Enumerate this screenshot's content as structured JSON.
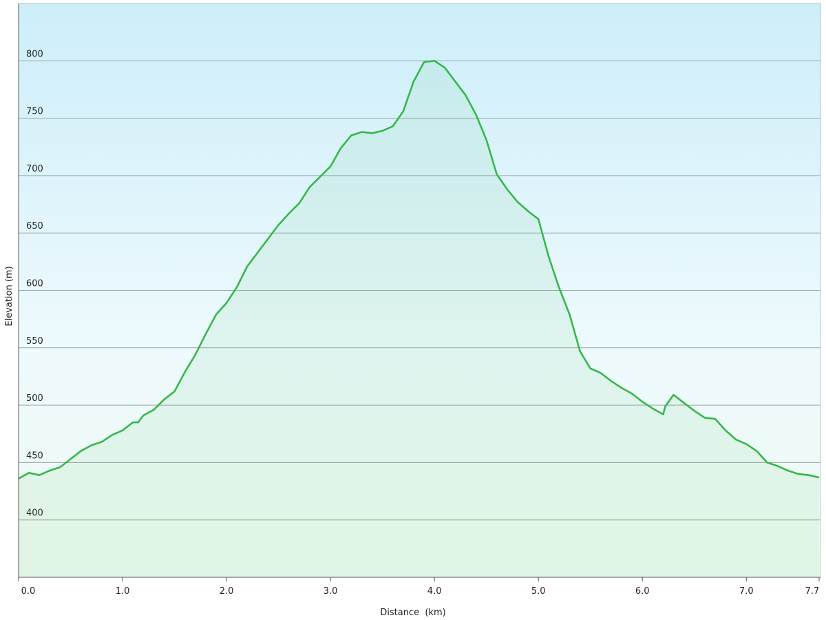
{
  "chart_data": {
    "type": "area",
    "x_label": "Distance  (km)",
    "y_label": "Elevation (m)",
    "x": [
      0,
      0.1,
      0.2,
      0.3,
      0.4,
      0.5,
      0.6,
      0.7,
      0.8,
      0.9,
      1.0,
      1.1,
      1.15,
      1.2,
      1.3,
      1.4,
      1.5,
      1.6,
      1.7,
      1.8,
      1.9,
      2.0,
      2.1,
      2.2,
      2.3,
      2.4,
      2.5,
      2.6,
      2.7,
      2.8,
      2.9,
      3.0,
      3.1,
      3.2,
      3.3,
      3.4,
      3.5,
      3.6,
      3.7,
      3.8,
      3.9,
      4.0,
      4.1,
      4.2,
      4.3,
      4.4,
      4.5,
      4.6,
      4.7,
      4.8,
      4.9,
      5.0,
      5.1,
      5.2,
      5.3,
      5.4,
      5.5,
      5.6,
      5.7,
      5.8,
      5.9,
      6.0,
      6.1,
      6.2,
      6.22,
      6.3,
      6.4,
      6.5,
      6.6,
      6.7,
      6.8,
      6.9,
      7.0,
      7.1,
      7.2,
      7.3,
      7.4,
      7.5,
      7.6,
      7.7
    ],
    "values": [
      436,
      441,
      439,
      443,
      446,
      453,
      460,
      465,
      468,
      474,
      478,
      485,
      485,
      491,
      496,
      505,
      512,
      529,
      544,
      562,
      579,
      589,
      603,
      621,
      633,
      645,
      657,
      667,
      676,
      690,
      699,
      708,
      724,
      735,
      738,
      737,
      739,
      743,
      756,
      782,
      799,
      800,
      794,
      782,
      770,
      753,
      731,
      701,
      688,
      677,
      669,
      662,
      629,
      602,
      579,
      547,
      532,
      528,
      521,
      515,
      510,
      503,
      497,
      492,
      499,
      509,
      502,
      495,
      489,
      488,
      478,
      470,
      466,
      460,
      450,
      447,
      443,
      440,
      439,
      437
    ],
    "color": "#35b84a",
    "xlim": [
      0,
      7.7
    ],
    "ylim": [
      350,
      850
    ],
    "xticks": [
      {
        "value": 0,
        "label": "0.0"
      },
      {
        "value": 1,
        "label": "1.0"
      },
      {
        "value": 2,
        "label": "2.0"
      },
      {
        "value": 3,
        "label": "3.0"
      },
      {
        "value": 4,
        "label": "4.0"
      },
      {
        "value": 5,
        "label": "5.0"
      },
      {
        "value": 6,
        "label": "6.0"
      },
      {
        "value": 7,
        "label": "7.0"
      },
      {
        "value": 7.7,
        "label": "7.7"
      }
    ],
    "yticks": [
      400,
      450,
      500,
      550,
      600,
      650,
      700,
      750,
      800
    ],
    "grid": true
  }
}
